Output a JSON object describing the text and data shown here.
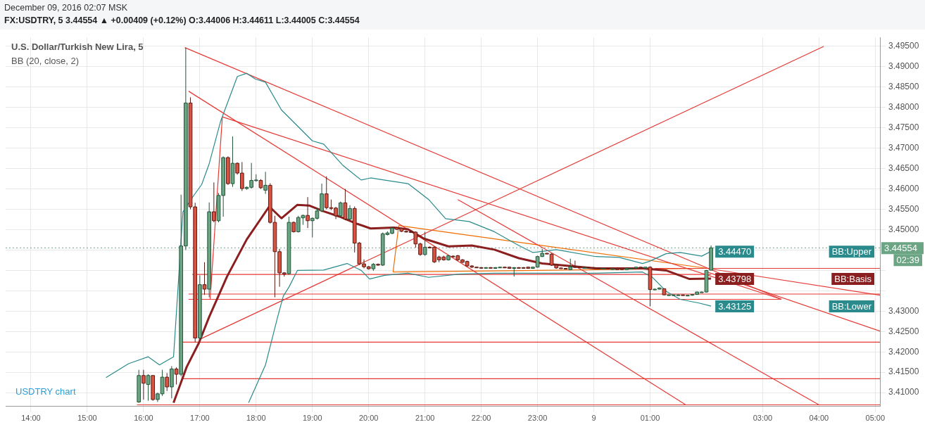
{
  "chart_data": {
    "type": "candlestick",
    "title": "December 09, 2016 02:07 MSK",
    "subtitle": "FX:USDTRY, 5  3.44554 ▲ +0.00409 (+0.12%) O:3.44006 H:3.44611 L:3.44005 C:3.44554",
    "annotations": [
      "U.S. Dollar/Turkish New Lira, 5",
      "BB (20, close, 2)",
      "USDTRY chart",
      "02:39"
    ],
    "x": [
      "2016-12-08T15:55",
      "2016-12-08T16:00",
      "2016-12-08T16:05",
      "2016-12-08T16:10",
      "2016-12-08T16:15",
      "2016-12-08T16:20",
      "2016-12-08T16:25",
      "2016-12-08T16:30",
      "2016-12-08T16:35",
      "2016-12-08T16:40",
      "2016-12-08T16:45",
      "2016-12-08T16:50",
      "2016-12-08T16:55",
      "2016-12-08T17:00",
      "2016-12-08T17:05",
      "2016-12-08T17:10",
      "2016-12-08T17:15",
      "2016-12-08T17:20",
      "2016-12-08T17:25",
      "2016-12-08T17:30",
      "2016-12-08T17:35",
      "2016-12-08T17:40",
      "2016-12-08T17:45",
      "2016-12-08T17:50",
      "2016-12-08T17:55",
      "2016-12-08T18:00",
      "2016-12-08T18:05",
      "2016-12-08T18:10",
      "2016-12-08T18:15",
      "2016-12-08T18:20",
      "2016-12-08T18:25",
      "2016-12-08T18:30",
      "2016-12-08T18:35",
      "2016-12-08T18:40",
      "2016-12-08T18:45",
      "2016-12-08T18:50",
      "2016-12-08T18:55",
      "2016-12-08T19:00",
      "2016-12-08T19:05",
      "2016-12-08T19:10",
      "2016-12-08T19:15",
      "2016-12-08T19:20",
      "2016-12-08T19:25",
      "2016-12-08T19:30",
      "2016-12-08T19:35",
      "2016-12-08T19:40",
      "2016-12-08T19:45",
      "2016-12-08T19:50",
      "2016-12-08T19:55",
      "2016-12-08T20:00",
      "2016-12-08T20:05",
      "2016-12-08T20:10",
      "2016-12-08T20:15",
      "2016-12-08T20:20",
      "2016-12-08T20:25",
      "2016-12-08T20:30",
      "2016-12-08T20:35",
      "2016-12-08T20:40",
      "2016-12-08T20:45",
      "2016-12-08T20:50",
      "2016-12-08T20:55",
      "2016-12-08T21:00",
      "2016-12-08T21:05",
      "2016-12-08T21:10",
      "2016-12-08T21:15",
      "2016-12-08T21:20",
      "2016-12-08T21:25",
      "2016-12-08T21:30",
      "2016-12-08T21:35",
      "2016-12-08T21:40",
      "2016-12-08T21:45",
      "2016-12-08T21:50",
      "2016-12-08T21:55",
      "2016-12-08T22:00",
      "2016-12-08T22:05",
      "2016-12-08T22:10",
      "2016-12-08T22:15",
      "2016-12-08T22:20",
      "2016-12-08T22:25",
      "2016-12-08T22:30",
      "2016-12-08T22:35",
      "2016-12-08T22:40",
      "2016-12-08T22:45",
      "2016-12-08T22:50",
      "2016-12-08T22:55",
      "2016-12-08T23:00",
      "2016-12-08T23:05",
      "2016-12-08T23:10",
      "2016-12-08T23:15",
      "2016-12-08T23:20",
      "2016-12-08T23:25",
      "2016-12-08T23:30",
      "2016-12-08T23:35",
      "2016-12-08T23:40",
      "2016-12-08T23:45",
      "2016-12-08T23:50",
      "2016-12-08T23:55",
      "2016-12-09T00:00",
      "2016-12-09T00:05",
      "2016-12-09T00:10",
      "2016-12-09T00:15",
      "2016-12-09T00:20",
      "2016-12-09T00:25",
      "2016-12-09T00:30",
      "2016-12-09T00:35",
      "2016-12-09T00:40",
      "2016-12-09T00:45",
      "2016-12-09T00:50",
      "2016-12-09T00:55",
      "2016-12-09T01:00",
      "2016-12-09T01:05",
      "2016-12-09T01:10",
      "2016-12-09T01:15",
      "2016-12-09T01:20",
      "2016-12-09T01:25",
      "2016-12-09T01:30",
      "2016-12-09T01:35",
      "2016-12-09T01:40",
      "2016-12-09T01:45",
      "2016-12-09T01:50",
      "2016-12-09T01:55",
      "2016-12-09T02:00",
      "2016-12-09T02:05"
    ],
    "ohlc": [
      [
        3.4077,
        3.4156,
        3.4075,
        3.4142
      ],
      [
        3.4142,
        3.4156,
        3.4083,
        3.4123
      ],
      [
        3.412,
        3.4145,
        3.408,
        3.4142
      ],
      [
        3.4142,
        3.4142,
        3.408,
        3.4083
      ],
      [
        3.4083,
        3.41,
        3.4077,
        3.4097
      ],
      [
        3.4097,
        3.4156,
        3.4092,
        3.4138
      ],
      [
        3.4138,
        3.4148,
        3.4104,
        3.4114
      ],
      [
        3.4114,
        3.4165,
        3.4086,
        3.4158
      ],
      [
        3.4158,
        3.4162,
        3.412,
        3.4145
      ],
      [
        3.4145,
        3.4586,
        3.414,
        3.446
      ],
      [
        3.446,
        3.4947,
        3.445,
        3.4811
      ],
      [
        3.4811,
        3.4825,
        3.455,
        3.4556
      ],
      [
        3.4556,
        3.4566,
        3.4224,
        3.4234
      ],
      [
        3.4234,
        3.4388,
        3.4227,
        3.4365
      ],
      [
        3.4365,
        3.442,
        3.434,
        3.4354
      ],
      [
        3.4354,
        3.4567,
        3.4334,
        3.4544
      ],
      [
        3.4544,
        3.4616,
        3.4518,
        3.4522
      ],
      [
        3.4522,
        3.459,
        3.4518,
        3.4584
      ],
      [
        3.4584,
        3.468,
        3.4532,
        3.4677
      ],
      [
        3.4677,
        3.468,
        3.461,
        3.4613
      ],
      [
        3.4613,
        3.4729,
        3.4605,
        3.4663
      ],
      [
        3.4663,
        3.4665,
        3.4635,
        3.4639
      ],
      [
        3.4639,
        3.4666,
        3.4595,
        3.4601
      ],
      [
        3.4601,
        3.4606,
        3.4598,
        3.4604
      ],
      [
        3.4604,
        3.4664,
        3.4601,
        3.4621
      ],
      [
        3.4621,
        3.4636,
        3.4618,
        3.4622
      ],
      [
        3.4621,
        3.4624,
        3.46,
        3.4603
      ],
      [
        3.4597,
        3.4642,
        3.4588,
        3.4609
      ],
      [
        3.4609,
        3.4614,
        3.4515,
        3.4518
      ],
      [
        3.4518,
        3.4534,
        3.4334,
        3.4446
      ],
      [
        3.4446,
        3.4453,
        3.436,
        3.4394
      ],
      [
        3.4394,
        3.4396,
        3.4385,
        3.4391
      ],
      [
        3.4392,
        3.4532,
        3.439,
        3.4518
      ],
      [
        3.4518,
        3.452,
        3.4493,
        3.4495
      ],
      [
        3.4495,
        3.4534,
        3.4493,
        3.453
      ],
      [
        3.4529,
        3.4537,
        3.4512,
        3.4535
      ],
      [
        3.4535,
        3.458,
        3.4504,
        3.4522
      ],
      [
        3.4522,
        3.453,
        3.4481,
        3.4528
      ],
      [
        3.4528,
        3.4553,
        3.4525,
        3.4546
      ],
      [
        3.4546,
        3.4613,
        3.4543,
        3.4588
      ],
      [
        3.4588,
        3.4631,
        3.455,
        3.4554
      ],
      [
        3.4554,
        3.4574,
        3.4548,
        3.4553
      ],
      [
        3.4553,
        3.4556,
        3.4526,
        3.4534
      ],
      [
        3.4534,
        3.4569,
        3.453,
        3.4566
      ],
      [
        3.4566,
        3.46,
        3.4523,
        3.4526
      ],
      [
        3.4526,
        3.456,
        3.4523,
        3.4552
      ],
      [
        3.4552,
        3.4557,
        3.4444,
        3.4467
      ],
      [
        3.4467,
        3.447,
        3.4413,
        3.4416
      ],
      [
        3.4416,
        3.4427,
        3.4405,
        3.4409
      ],
      [
        3.4409,
        3.4411,
        3.4402,
        3.4404
      ],
      [
        3.4404,
        3.4418,
        3.4399,
        3.4415
      ],
      [
        3.4415,
        3.4417,
        3.4411,
        3.4413
      ],
      [
        3.4413,
        3.4493,
        3.4411,
        3.449
      ],
      [
        3.4488,
        3.4496,
        3.4486,
        3.4492
      ],
      [
        3.4491,
        3.4507,
        3.4489,
        3.4504
      ],
      [
        3.4505,
        3.4507,
        3.4499,
        3.4501
      ],
      [
        3.4503,
        3.4505,
        3.4494,
        3.4496
      ],
      [
        3.4496,
        3.4498,
        3.4493,
        3.4495
      ],
      [
        3.4495,
        3.4497,
        3.4492,
        3.4494
      ],
      [
        3.4494,
        3.4496,
        3.4456,
        3.4465
      ],
      [
        3.4465,
        3.4468,
        3.4436,
        3.4439
      ],
      [
        3.4439,
        3.4495,
        3.4436,
        3.4457
      ],
      [
        3.4457,
        3.4459,
        3.4454,
        3.4456
      ],
      [
        3.4457,
        3.4459,
        3.4418,
        3.4421
      ],
      [
        3.4433,
        3.4436,
        3.442,
        3.4426
      ],
      [
        3.4433,
        3.4436,
        3.4424,
        3.4426
      ],
      [
        3.4426,
        3.4438,
        3.4424,
        3.4436
      ],
      [
        3.4435,
        3.4437,
        3.4432,
        3.4434
      ],
      [
        3.4436,
        3.4438,
        3.4424,
        3.4426
      ],
      [
        3.4426,
        3.4428,
        3.4418,
        3.442
      ],
      [
        3.4422,
        3.4424,
        3.4409,
        3.4411
      ],
      [
        3.4411,
        3.4413,
        3.4406,
        3.4408
      ],
      [
        3.4408,
        3.4409,
        3.4406,
        3.4407
      ],
      [
        3.4407,
        3.4408,
        3.4405,
        3.4406
      ],
      [
        3.4406,
        3.4408,
        3.4405,
        3.4407
      ],
      [
        3.4407,
        3.4408,
        3.4405,
        3.4406
      ],
      [
        3.4405,
        3.4408,
        3.4404,
        3.4407
      ],
      [
        3.4407,
        3.4409,
        3.4406,
        3.4408
      ],
      [
        3.4408,
        3.4409,
        3.4406,
        3.4407
      ],
      [
        3.4408,
        3.4409,
        3.4404,
        3.4405
      ],
      [
        3.4405,
        3.4408,
        3.4385,
        3.4407
      ],
      [
        3.4407,
        3.4408,
        3.4405,
        3.4406
      ],
      [
        3.4407,
        3.4408,
        3.4405,
        3.4406
      ],
      [
        3.4408,
        3.4409,
        3.4404,
        3.4405
      ],
      [
        3.4405,
        3.4409,
        3.4404,
        3.4408
      ],
      [
        3.4408,
        3.4436,
        3.4407,
        3.4434
      ],
      [
        3.4434,
        3.4453,
        3.4433,
        3.4442
      ],
      [
        3.4442,
        3.4443,
        3.444,
        3.4441
      ],
      [
        3.444,
        3.4442,
        3.4411,
        3.4413
      ],
      [
        3.4413,
        3.4414,
        3.4404,
        3.4406
      ],
      [
        3.4406,
        3.4407,
        3.4404,
        3.4405
      ],
      [
        3.4405,
        3.4406,
        3.4403,
        3.4404
      ],
      [
        3.4402,
        3.4429,
        3.4401,
        3.4409
      ],
      [
        3.4409,
        3.4424,
        3.4407,
        3.4408
      ],
      [
        3.4408,
        3.4409,
        3.4406,
        3.4407
      ],
      [
        3.4407,
        3.4408,
        3.4406,
        3.4407
      ],
      [
        3.4407,
        3.4408,
        3.4405,
        3.4406
      ],
      [
        3.4407,
        3.4408,
        3.4405,
        3.4406
      ],
      [
        3.4406,
        3.4407,
        3.4404,
        3.4405
      ],
      [
        3.4405,
        3.4406,
        3.4404,
        3.4405
      ],
      [
        3.4405,
        3.4406,
        3.4403,
        3.4404
      ],
      [
        3.4404,
        3.4405,
        3.4403,
        3.4404
      ],
      [
        3.4404,
        3.4405,
        3.4402,
        3.4402
      ],
      [
        3.4404,
        3.4405,
        3.4401,
        3.4402
      ],
      [
        3.4402,
        3.4406,
        3.4401,
        3.4405
      ],
      [
        3.4405,
        3.4406,
        3.4404,
        3.4405
      ],
      [
        3.4405,
        3.4409,
        3.4404,
        3.4408
      ],
      [
        3.4408,
        3.4409,
        3.4405,
        3.4406
      ],
      [
        3.4405,
        3.4409,
        3.4404,
        3.4408
      ],
      [
        3.4408,
        3.441,
        3.4312,
        3.4353
      ],
      [
        3.4353,
        3.4355,
        3.4352,
        3.4354
      ],
      [
        3.4354,
        3.4358,
        3.4353,
        3.4357
      ],
      [
        3.4355,
        3.4356,
        3.4339,
        3.434
      ],
      [
        3.434,
        3.4341,
        3.4339,
        3.434
      ],
      [
        3.434,
        3.4341,
        3.4339,
        3.434
      ],
      [
        3.434,
        3.4341,
        3.4339,
        3.434
      ],
      [
        3.434,
        3.4341,
        3.4338,
        3.4339
      ],
      [
        3.4339,
        3.434,
        3.4338,
        3.4339
      ],
      [
        3.4339,
        3.4342,
        3.4338,
        3.4341
      ],
      [
        3.4341,
        3.4348,
        3.434,
        3.4347
      ],
      [
        3.4347,
        3.4348,
        3.4346,
        3.4347
      ],
      [
        3.4347,
        3.4401,
        3.4346,
        3.44
      ],
      [
        3.44006,
        3.44611,
        3.44005,
        3.44554
      ]
    ],
    "series": [
      {
        "name": "BB:Upper",
        "type": "line",
        "color": "#2a8a8c",
        "x": [
          "2016-12-08T15:20",
          "2016-12-08T15:44",
          "2016-12-08T16:05",
          "2016-12-08T16:17",
          "2016-12-08T16:32",
          "2016-12-08T16:42",
          "2016-12-08T16:52",
          "2016-12-08T17:02",
          "2016-12-08T17:10",
          "2016-12-08T17:22",
          "2016-12-08T17:40",
          "2016-12-08T17:50",
          "2016-12-08T17:59",
          "2016-12-08T18:10",
          "2016-12-08T18:27",
          "2016-12-08T19:00",
          "2016-12-08T19:12",
          "2016-12-08T19:32",
          "2016-12-08T19:52",
          "2016-12-08T20:02",
          "2016-12-08T20:42",
          "2016-12-08T21:04",
          "2016-12-08T21:22",
          "2016-12-08T21:47",
          "2016-12-08T22:14",
          "2016-12-08T22:40",
          "2016-12-08T22:55",
          "2016-12-08T23:20",
          "2016-12-09T00:02",
          "2016-12-09T00:27",
          "2016-12-09T00:52",
          "2016-12-09T00:59",
          "2016-12-09T01:17",
          "2016-12-09T01:32",
          "2016-12-09T01:55",
          "2016-12-09T02:05"
        ],
        "values": [
          3.4137,
          3.4171,
          3.4188,
          3.4168,
          3.4188,
          3.4544,
          3.4579,
          3.4611,
          3.4662,
          3.4765,
          3.4876,
          3.4884,
          3.487,
          3.4862,
          3.4794,
          3.4718,
          3.471,
          3.4659,
          3.4622,
          3.4627,
          3.4613,
          3.4574,
          3.4527,
          3.452,
          3.4495,
          3.4461,
          3.4444,
          3.4451,
          3.4434,
          3.4432,
          3.4417,
          3.4422,
          3.4441,
          3.4444,
          3.4435,
          3.4447
        ],
        "value_labels": [
          null,
          null,
          null,
          null,
          null,
          null,
          null,
          null,
          null,
          null,
          null,
          null,
          null,
          null,
          null,
          null,
          null,
          null,
          null,
          null,
          null,
          null,
          null,
          null,
          null,
          null,
          null,
          null,
          null,
          null,
          null,
          null,
          null,
          null,
          null,
          "3.44470"
        ]
      },
      {
        "name": "BB:Basis",
        "type": "line",
        "color": "#8b1e1e",
        "x": [
          "2016-12-08T16:32",
          "2016-12-08T16:46",
          "2016-12-08T16:59",
          "2016-12-08T17:10",
          "2016-12-08T17:29",
          "2016-12-08T17:50",
          "2016-12-08T18:14",
          "2016-12-08T18:27",
          "2016-12-08T18:44",
          "2016-12-08T18:57",
          "2016-12-08T19:12",
          "2016-12-08T19:29",
          "2016-12-08T19:47",
          "2016-12-08T20:02",
          "2016-12-08T20:27",
          "2016-12-08T20:42",
          "2016-12-08T20:59",
          "2016-12-08T21:25",
          "2016-12-08T21:50",
          "2016-12-08T22:14",
          "2016-12-08T22:40",
          "2016-12-08T23:05",
          "2016-12-09T00:02",
          "2016-12-09T00:52",
          "2016-12-09T01:17",
          "2016-12-09T01:42",
          "2016-12-09T02:05"
        ],
        "values": [
          3.4075,
          3.4163,
          3.4222,
          3.4286,
          3.4385,
          3.4476,
          3.4557,
          3.4528,
          3.4561,
          3.4559,
          3.4545,
          3.4532,
          3.4515,
          3.4503,
          3.4505,
          3.4501,
          3.4478,
          3.4459,
          3.4461,
          3.4451,
          3.443,
          3.4417,
          3.4405,
          3.4405,
          3.44,
          3.4379,
          3.43798
        ],
        "value_labels": [
          null,
          null,
          null,
          null,
          null,
          null,
          null,
          null,
          null,
          null,
          null,
          null,
          null,
          null,
          null,
          null,
          null,
          null,
          null,
          null,
          null,
          null,
          null,
          null,
          null,
          null,
          "3.43798"
        ]
      },
      {
        "name": "BB:Lower",
        "type": "line",
        "color": "#2a8a8c",
        "x": [
          "2016-12-08T17:52",
          "2016-12-08T18:10",
          "2016-12-08T18:23",
          "2016-12-08T18:29",
          "2016-12-08T18:35",
          "2016-12-08T18:44",
          "2016-12-08T19:12",
          "2016-12-08T19:37",
          "2016-12-08T19:52",
          "2016-12-08T20:01",
          "2016-12-08T20:17",
          "2016-12-08T20:42",
          "2016-12-08T21:04",
          "2016-12-08T21:37",
          "2016-12-08T22:14",
          "2016-12-08T23:20",
          "2016-12-09T00:02",
          "2016-12-09T00:52",
          "2016-12-09T01:02",
          "2016-12-09T01:17",
          "2016-12-09T01:32",
          "2016-12-09T01:52",
          "2016-12-09T02:05"
        ],
        "values": [
          3.4075,
          3.4168,
          3.4286,
          3.4337,
          3.4359,
          3.44,
          3.4401,
          3.4417,
          3.44,
          3.4379,
          3.4388,
          3.4393,
          3.4383,
          3.4391,
          3.4393,
          3.4393,
          3.4393,
          3.4396,
          3.4384,
          3.4349,
          3.4329,
          3.432,
          3.43125
        ],
        "value_labels": [
          null,
          null,
          null,
          null,
          null,
          null,
          null,
          null,
          null,
          null,
          null,
          null,
          null,
          null,
          null,
          null,
          null,
          null,
          null,
          null,
          null,
          null,
          "3.43125"
        ]
      },
      {
        "type": "line",
        "color": "#e53935",
        "x": [
          "2016-12-08T16:44",
          "2016-12-09T03:20"
        ],
        "values": [
          3.4947,
          3.4329
        ]
      },
      {
        "type": "line",
        "color": "#e53935",
        "x": [
          "2016-12-08T16:48",
          "2016-12-09T01:38"
        ],
        "values": [
          3.484,
          3.407
        ]
      },
      {
        "type": "line",
        "color": "#e53935",
        "x": [
          "2016-12-08T17:24",
          "2016-12-09T03:20"
        ],
        "values": [
          3.4777,
          3.4329
        ]
      },
      {
        "type": "line",
        "color": "#e53935",
        "x": [
          "2016-12-08T16:59",
          "2016-12-09T04:05"
        ],
        "values": [
          3.423,
          3.495
        ]
      },
      {
        "type": "line",
        "color": "#e53935",
        "x": [
          "2016-12-08T21:35",
          "2016-12-09T04:00"
        ],
        "values": [
          3.4574,
          3.407
        ]
      },
      {
        "type": "line",
        "color": "#e53935",
        "x": [
          "2016-12-09T02:01",
          "2016-12-09T05:05"
        ],
        "values": [
          3.4405,
          3.4339
        ]
      },
      {
        "type": "line",
        "color": "#e53935",
        "x": [
          "2016-12-09T02:01",
          "2016-12-09T05:05"
        ],
        "values": [
          3.4396,
          3.4251
        ]
      },
      {
        "type": "line",
        "color": "#e53935",
        "x": [
          "2016-12-08T17:11",
          "2016-12-08T17:24"
        ],
        "values": [
          3.4329,
          3.4777
        ]
      },
      {
        "type": "line",
        "color": "#e53935",
        "x": [
          "2016-12-08T16:52",
          "2016-12-09T02:05"
        ],
        "values": [
          3.439,
          3.439
        ]
      },
      {
        "type": "line",
        "color": "#e53935",
        "x": [
          "2016-12-09T01:05",
          "2016-12-09T05:05"
        ],
        "values": [
          3.4405,
          3.4405
        ]
      },
      {
        "type": "line",
        "color": "#e53935",
        "x": [
          "2016-12-08T16:48",
          "2016-12-09T05:05"
        ],
        "values": [
          3.4342,
          3.4342
        ]
      },
      {
        "type": "line",
        "color": "#e53935",
        "x": [
          "2016-12-08T16:48",
          "2016-12-09T03:20"
        ],
        "values": [
          3.4329,
          3.4329
        ]
      },
      {
        "type": "line",
        "color": "#e53935",
        "x": [
          "2016-12-08T16:41",
          "2016-12-09T05:05"
        ],
        "values": [
          3.4224,
          3.4224
        ]
      },
      {
        "type": "line",
        "color": "#e53935",
        "x": [
          "2016-12-08T16:41",
          "2016-12-09T05:05"
        ],
        "values": [
          3.4134,
          3.4134
        ]
      },
      {
        "type": "line",
        "color": "#e53935",
        "x": [
          "2016-12-08T15:53",
          "2016-12-09T05:05"
        ],
        "values": [
          3.407,
          3.407
        ]
      },
      {
        "type": "line",
        "color": "#ef6c00",
        "x": [
          "2016-12-08T20:26",
          "2016-12-08T20:32"
        ],
        "values": [
          3.4396,
          3.451
        ]
      },
      {
        "type": "line",
        "color": "#ef6c00",
        "x": [
          "2016-12-08T20:32",
          "2016-12-09T02:01"
        ],
        "values": [
          3.451,
          3.4405
        ]
      },
      {
        "type": "line",
        "color": "#ef6c00",
        "x": [
          "2016-12-08T20:26",
          "2016-12-09T02:01"
        ],
        "values": [
          3.4396,
          3.4405
        ]
      }
    ],
    "ref_lines": [
      {
        "axis": "y",
        "value": 3.44554,
        "label": "3.44554",
        "color": "#6ba583",
        "line_style": "dotted"
      }
    ],
    "legend": "right",
    "xlim": [
      "2016-12-08T13:33",
      "2016-12-09T05:05"
    ],
    "xticks": [
      {
        "value": "2016-12-08T14:00",
        "label": "14:00"
      },
      {
        "value": "2016-12-08T15:00",
        "label": "15:00"
      },
      {
        "value": "2016-12-08T16:00",
        "label": "16:00"
      },
      {
        "value": "2016-12-08T17:00",
        "label": "17:00"
      },
      {
        "value": "2016-12-08T18:00",
        "label": "18:00"
      },
      {
        "value": "2016-12-08T19:00",
        "label": "19:00"
      },
      {
        "value": "2016-12-08T20:00",
        "label": "20:00"
      },
      {
        "value": "2016-12-08T21:00",
        "label": "21:00"
      },
      {
        "value": "2016-12-08T22:00",
        "label": "22:00"
      },
      {
        "value": "2016-12-08T23:00",
        "label": "23:00"
      },
      {
        "value": "2016-12-09T00:00",
        "label": "9"
      },
      {
        "value": "2016-12-09T01:00",
        "label": "01:00"
      },
      {
        "value": "2016-12-09T03:00",
        "label": "03:00"
      },
      {
        "value": "2016-12-09T04:00",
        "label": "04:00"
      },
      {
        "value": "2016-12-09T05:00",
        "label": "05:00"
      }
    ],
    "ylim": [
      3.4066,
      3.4972
    ],
    "yticks": [
      {
        "value": 3.41,
        "label": "3.41000"
      },
      {
        "value": 3.415,
        "label": "3.41500"
      },
      {
        "value": 3.42,
        "label": "3.42000"
      },
      {
        "value": 3.425,
        "label": "3.42500"
      },
      {
        "value": 3.43,
        "label": "3.43000"
      },
      {
        "value": 3.435,
        "label": null
      },
      {
        "value": 3.44,
        "label": null
      },
      {
        "value": 3.445,
        "label": null
      },
      {
        "value": 3.45,
        "label": "3.45000"
      },
      {
        "value": 3.455,
        "label": "3.45500"
      },
      {
        "value": 3.46,
        "label": "3.46000"
      },
      {
        "value": 3.465,
        "label": "3.46500"
      },
      {
        "value": 3.47,
        "label": "3.47000"
      },
      {
        "value": 3.475,
        "label": "3.47500"
      },
      {
        "value": 3.48,
        "label": "3.48000"
      },
      {
        "value": 3.485,
        "label": "3.48500"
      },
      {
        "value": 3.49,
        "label": "3.49000"
      },
      {
        "value": 3.495,
        "label": "3.49500"
      }
    ],
    "grid": true
  }
}
